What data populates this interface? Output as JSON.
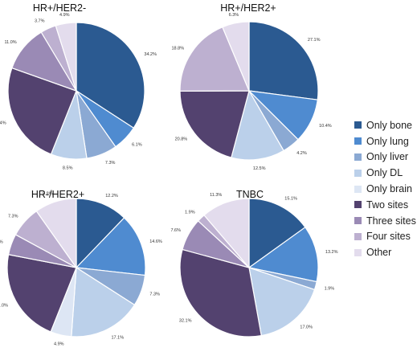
{
  "colors": {
    "Only bone": "#2b5a91",
    "Only lung": "#4f8bd0",
    "Only liver": "#8ba9d3",
    "Only DL": "#bbd0ea",
    "Only brain": "#dde6f4",
    "Two sites": "#53426f",
    "Three sites": "#9a8ab5",
    "Four sites": "#bdb0d0",
    "Other": "#e3dced"
  },
  "legend": {
    "items": [
      "Only bone",
      "Only lung",
      "Only liver",
      "Only DL",
      "Only brain",
      "Two sites",
      "Three sites",
      "Four sites",
      "Other"
    ]
  },
  "chart_data": [
    {
      "type": "pie",
      "title": "HR+/HER2-",
      "slices": [
        {
          "name": "Only bone",
          "value": 34.2,
          "label": "34.2%"
        },
        {
          "name": "Only lung",
          "value": 6.1,
          "label": "6.1%"
        },
        {
          "name": "Only liver",
          "value": 7.3,
          "label": "7.3%"
        },
        {
          "name": "Only DL",
          "value": 8.5,
          "label": "8.5%"
        },
        {
          "name": "Only brain",
          "value": 0,
          "label": ""
        },
        {
          "name": "Two sites",
          "value": 24.4,
          "label": "24.4%"
        },
        {
          "name": "Three sites",
          "value": 11.0,
          "label": "11.0%"
        },
        {
          "name": "Four sites",
          "value": 3.7,
          "label": "3.7%"
        },
        {
          "name": "Other",
          "value": 4.9,
          "label": "4.9%"
        }
      ]
    },
    {
      "type": "pie",
      "title": "HR+/HER2+",
      "slices": [
        {
          "name": "Only bone",
          "value": 27.1,
          "label": "27.1%"
        },
        {
          "name": "Only lung",
          "value": 10.4,
          "label": "10.4%"
        },
        {
          "name": "Only liver",
          "value": 4.2,
          "label": "4.2%"
        },
        {
          "name": "Only DL",
          "value": 12.5,
          "label": "12.5%"
        },
        {
          "name": "Only brain",
          "value": 0,
          "label": ""
        },
        {
          "name": "Two sites",
          "value": 20.8,
          "label": "20.8%"
        },
        {
          "name": "Three sites",
          "value": 0,
          "label": ""
        },
        {
          "name": "Four sites",
          "value": 18.8,
          "label": "18.8%"
        },
        {
          "name": "Other",
          "value": 6.3,
          "label": "6.3%"
        }
      ]
    },
    {
      "type": "pie",
      "title": "HR-/HER2+",
      "slices": [
        {
          "name": "Only bone",
          "value": 12.2,
          "label": "12.2%"
        },
        {
          "name": "Only lung",
          "value": 14.6,
          "label": "14.6%"
        },
        {
          "name": "Only liver",
          "value": 7.3,
          "label": "7.3%"
        },
        {
          "name": "Only DL",
          "value": 17.1,
          "label": "17.1%"
        },
        {
          "name": "Only brain",
          "value": 4.9,
          "label": "4.9%"
        },
        {
          "name": "Two sites",
          "value": 22.0,
          "label": "22.0%"
        },
        {
          "name": "Three sites",
          "value": 4.9,
          "label": "4.9%"
        },
        {
          "name": "Four sites",
          "value": 7.3,
          "label": "7.3%"
        },
        {
          "name": "Other",
          "value": 9.8,
          "label": "9.8%"
        }
      ]
    },
    {
      "type": "pie",
      "title": "TNBC",
      "slices": [
        {
          "name": "Only bone",
          "value": 15.1,
          "label": "15.1%"
        },
        {
          "name": "Only lung",
          "value": 13.2,
          "label": "13.2%"
        },
        {
          "name": "Only liver",
          "value": 1.9,
          "label": "1.9%"
        },
        {
          "name": "Only DL",
          "value": 17.0,
          "label": "17.0%"
        },
        {
          "name": "Only brain",
          "value": 0,
          "label": ""
        },
        {
          "name": "Two sites",
          "value": 32.1,
          "label": "32.1%"
        },
        {
          "name": "Three sites",
          "value": 7.6,
          "label": "7.6%"
        },
        {
          "name": "Four sites",
          "value": 1.9,
          "label": "1.9%"
        },
        {
          "name": "Other",
          "value": 11.3,
          "label": "11.3%"
        }
      ]
    }
  ]
}
